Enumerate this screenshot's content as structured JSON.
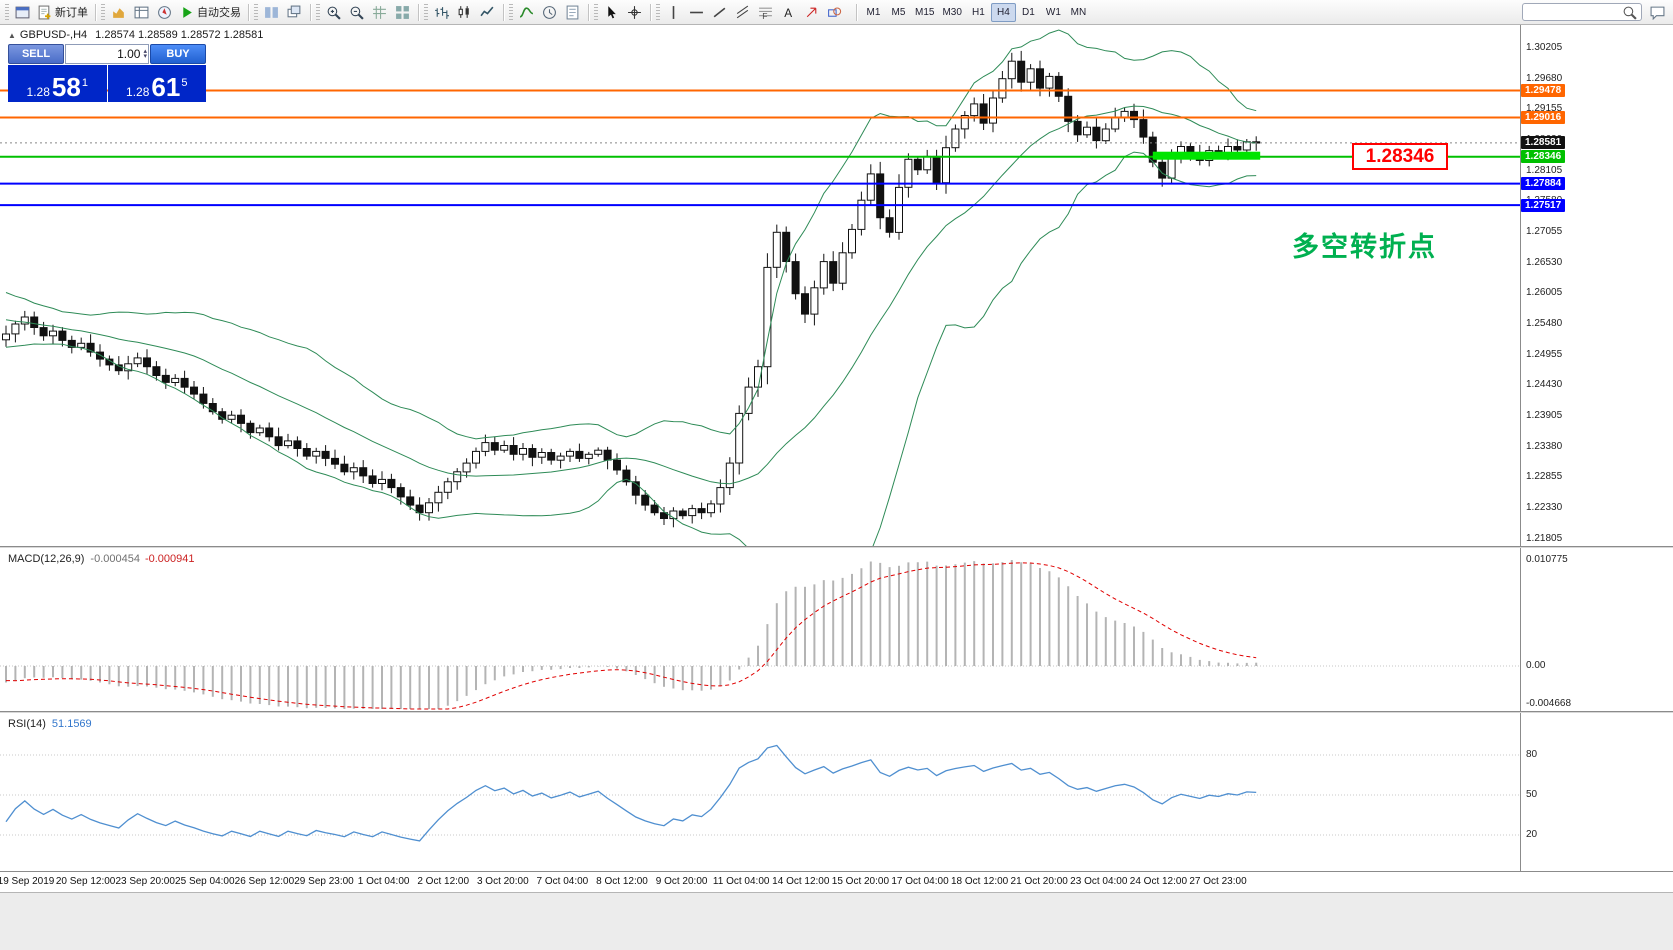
{
  "toolbar": {
    "new_order": "新订单",
    "autotrading": "自动交易",
    "timeframes": [
      "M1",
      "M5",
      "M15",
      "M30",
      "H1",
      "H4",
      "D1",
      "W1",
      "MN"
    ],
    "active_timeframe": "H4",
    "search_placeholder": "",
    "icon_groups": [
      [
        "mt-logo",
        "new-order"
      ],
      [
        "market-watch",
        "data-window",
        "navigator",
        "autotrading"
      ],
      [
        "tile-windows",
        "cascade-windows"
      ],
      [
        "zoom-in",
        "zoom-out",
        "grid",
        "full-screen"
      ],
      [
        "bar-chart",
        "candle-chart",
        "line-chart"
      ],
      [
        "indicators",
        "periods",
        "templates"
      ],
      [
        "cursor",
        "crosshair"
      ],
      [
        "vertical-line",
        "horizontal-line",
        "trendline",
        "channel",
        "fibonacci",
        "text",
        "arrows",
        "shapes"
      ]
    ]
  },
  "chart": {
    "symbol": "GBPUSD-,H4",
    "ohlc_text": "1.28574 1.28589 1.28572 1.28581"
  },
  "one_click": {
    "sell_label": "SELL",
    "buy_label": "BUY",
    "volume": "1.00",
    "sell_price_prefix": "1.28",
    "sell_price_big": "58",
    "sell_price_sup": "1",
    "buy_price_prefix": "1.28",
    "buy_price_big": "61",
    "buy_price_sup": "5"
  },
  "annotations": {
    "price_box": "1.28346",
    "turning_point": "多空转折点"
  },
  "axis": {
    "price_ticks": [
      "1.30205",
      "1.29680",
      "1.29155",
      "1.28630",
      "1.28105",
      "1.27580",
      "1.27055",
      "1.26530",
      "1.26005",
      "1.25480",
      "1.24955",
      "1.24430",
      "1.23905",
      "1.23380",
      "1.22855",
      "1.22330",
      "1.21805"
    ],
    "time_labels": [
      "19 Sep 2019",
      "20 Sep 12:00",
      "23 Sep 20:00",
      "25 Sep 04:00",
      "26 Sep 12:00",
      "29 Sep 23:00",
      "1 Oct 04:00",
      "2 Oct 12:00",
      "3 Oct 20:00",
      "7 Oct 04:00",
      "8 Oct 12:00",
      "9 Oct 20:00",
      "11 Oct 04:00",
      "14 Oct 12:00",
      "15 Oct 20:00",
      "17 Oct 04:00",
      "18 Oct 12:00",
      "21 Oct 20:00",
      "23 Oct 04:00",
      "24 Oct 12:00",
      "27 Oct 23:00"
    ]
  },
  "macd": {
    "name": "MACD(12,26,9)",
    "value_main": "-0.000454",
    "value_signal": "-0.000941",
    "scale": [
      "0.010775",
      "0.00",
      "-0.004668"
    ]
  },
  "rsi": {
    "name": "RSI(14)",
    "value": "51.1569",
    "levels": [
      "80",
      "50",
      "20"
    ]
  },
  "colors": {
    "bollinger": "#2e8b57",
    "macd_histogram": "#b4b4b4",
    "macd_signal": "#e00000",
    "rsi_line": "#4f8fd0",
    "up_candle": "#ffffff",
    "down_candle": "#111111",
    "hline_orange": "#ff6600",
    "hline_green": "#00c000",
    "hline_blue": "#0000ff",
    "highlight_green": "#00e400",
    "annotation_red": "#ff0000",
    "annotation_green": "#00b050"
  },
  "chart_data": {
    "type": "candlestick",
    "symbol": "GBPUSD-",
    "timeframe": "H4",
    "price_top": 1.306,
    "price_bottom": 1.2168,
    "indicators": {
      "bollinger": {
        "period": 20,
        "deviation": 2
      },
      "macd": [
        12,
        26,
        9
      ],
      "rsi": 14
    },
    "warmup_closes": [
      1.2602,
      1.2596,
      1.2589,
      1.2593,
      1.2581,
      1.2574,
      1.2579,
      1.2566,
      1.2559,
      1.2563,
      1.2551,
      1.2546,
      1.2553,
      1.2541,
      1.2535,
      1.2543,
      1.2531,
      1.2523,
      1.2529,
      1.2521
    ],
    "closes": [
      1.2531,
      1.2548,
      1.256,
      1.2542,
      1.2528,
      1.2536,
      1.252,
      1.2508,
      1.2515,
      1.25,
      1.2488,
      1.2478,
      1.2468,
      1.248,
      1.249,
      1.2475,
      1.246,
      1.2448,
      1.2455,
      1.244,
      1.2428,
      1.2412,
      1.2398,
      1.2385,
      1.2392,
      1.2378,
      1.2362,
      1.237,
      1.2355,
      1.234,
      1.2348,
      1.2335,
      1.2322,
      1.233,
      1.2318,
      1.2308,
      1.2295,
      1.2302,
      1.2288,
      1.2275,
      1.2282,
      1.2268,
      1.2252,
      1.2238,
      1.2225,
      1.2242,
      1.226,
      1.2278,
      1.2295,
      1.231,
      1.233,
      1.2345,
      1.2332,
      1.234,
      1.2325,
      1.2335,
      1.232,
      1.2328,
      1.2315,
      1.2322,
      1.233,
      1.2318,
      1.2325,
      1.2332,
      1.2315,
      1.2298,
      1.2278,
      1.2255,
      1.2238,
      1.2225,
      1.2215,
      1.2228,
      1.222,
      1.2232,
      1.2225,
      1.224,
      1.2268,
      1.231,
      1.2395,
      1.244,
      1.2475,
      1.2645,
      1.2705,
      1.2655,
      1.26,
      1.2565,
      1.261,
      1.2655,
      1.2618,
      1.267,
      1.271,
      1.276,
      1.2805,
      1.273,
      1.2705,
      1.2782,
      1.283,
      1.2812,
      1.2835,
      1.279,
      1.285,
      1.2882,
      1.2905,
      1.2925,
      1.2892,
      1.2935,
      1.2968,
      1.2998,
      1.2962,
      1.2985,
      1.2952,
      1.2972,
      1.2938,
      1.2895,
      1.2872,
      1.2885,
      1.2862,
      1.2882,
      1.2902,
      1.2912,
      1.2898,
      1.2868,
      1.2825,
      1.2798,
      1.2832,
      1.2852,
      1.284,
      1.2828,
      1.2845,
      1.2838,
      1.2852,
      1.2846,
      1.286,
      1.2858
    ],
    "hlines": [
      {
        "price": 1.29478,
        "color": "#ff6600",
        "label": "1.29478"
      },
      {
        "price": 1.29016,
        "color": "#ff6600",
        "label": "1.29016"
      },
      {
        "price": 1.28346,
        "color": "#00c000",
        "label": "1.28346"
      },
      {
        "price": 1.27884,
        "color": "#0000ff",
        "label": "1.27884"
      },
      {
        "price": 1.27517,
        "color": "#0000ff",
        "label": "1.27517"
      }
    ],
    "current_price": 1.28581,
    "current_price_label": "1.28581",
    "highlight": {
      "price": 1.28346,
      "from_bar": 122,
      "to_bar": 133,
      "color": "#00e400"
    }
  }
}
